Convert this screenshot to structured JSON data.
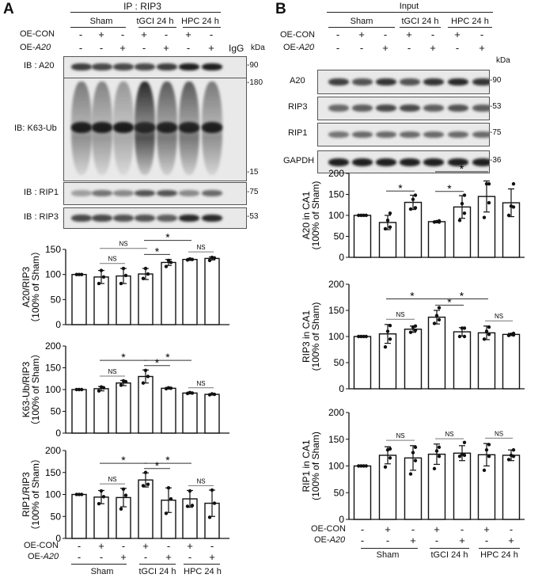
{
  "panelA": {
    "label": "A",
    "ip_header": "IP : RIP3",
    "groups": [
      "Sham",
      "tGCI 24 h",
      "HPC 24 h"
    ],
    "row_oe_con": "OE-CON",
    "row_oe_a20_prefix": "OE-",
    "row_oe_a20_gene": "A20",
    "oe_con": [
      "-",
      "+",
      "-",
      "+",
      "-",
      "+",
      "-"
    ],
    "oe_a20": [
      "-",
      "-",
      "+",
      "-",
      "+",
      "-",
      "+"
    ],
    "igg": "IgG",
    "kda": "kDa",
    "blots": [
      {
        "label": "IB : A20",
        "markers": [
          "90"
        ]
      },
      {
        "label": "IB: K63-Ub",
        "markers": [
          "180",
          "15"
        ]
      },
      {
        "label": "IB : RIP1",
        "markers": [
          "75"
        ]
      },
      {
        "label": "IB : RIP3",
        "markers": [
          "53"
        ]
      }
    ]
  },
  "panelB": {
    "label": "B",
    "header": "Input",
    "groups": [
      "Sham",
      "tGCI 24 h",
      "HPC 24 h"
    ],
    "row_oe_con": "OE-CON",
    "row_oe_a20_prefix": "OE-",
    "row_oe_a20_gene": "A20",
    "oe_con": [
      "-",
      "+",
      "-",
      "+",
      "-",
      "+",
      "-"
    ],
    "oe_a20": [
      "-",
      "-",
      "+",
      "-",
      "+",
      "-",
      "+"
    ],
    "kda": "kDa",
    "blots": [
      {
        "label": "A20",
        "markers": [
          "90"
        ]
      },
      {
        "label": "RIP3",
        "markers": [
          "53"
        ]
      },
      {
        "label": "RIP1",
        "markers": [
          "75"
        ]
      },
      {
        "label": "GAPDH",
        "markers": [
          "36"
        ]
      }
    ]
  },
  "bottom_axes": {
    "oe_con": "OE-CON",
    "oe_a20_prefix": "OE-",
    "oe_a20_gene": "A20",
    "oe_con_signs": [
      "-",
      "+",
      "-",
      "+",
      "-",
      "+",
      "-"
    ],
    "oe_a20_signs": [
      "-",
      "-",
      "+",
      "-",
      "+",
      "-",
      "+"
    ],
    "groups": [
      "Sham",
      "tGCI 24 h",
      "HPC 24 h"
    ]
  },
  "chart_data": [
    {
      "type": "bar",
      "panel": "A",
      "ylabel": [
        "A20/RIP3",
        "（100% of Sham）"
      ],
      "ylim": [
        0,
        150
      ],
      "yticks": [
        0,
        50,
        100,
        150
      ],
      "values": [
        100,
        95,
        97,
        101,
        124,
        130,
        132
      ],
      "errors": [
        0,
        13,
        15,
        11,
        6,
        2,
        3
      ],
      "points": [
        [
          100,
          100,
          100
        ],
        [
          82,
          95,
          108
        ],
        [
          82,
          98,
          112
        ],
        [
          92,
          101,
          112
        ],
        [
          116,
          124,
          128
        ],
        [
          129,
          130,
          131
        ],
        [
          128,
          133,
          134
        ]
      ],
      "comparisons": [
        {
          "a": 1,
          "b": 2,
          "label": "NS"
        },
        {
          "a": 1,
          "b": 3,
          "label": "NS"
        },
        {
          "a": 3,
          "b": 4,
          "label": "*"
        },
        {
          "a": 3,
          "b": 5,
          "label": "*"
        },
        {
          "a": 5,
          "b": 6,
          "label": "NS"
        }
      ]
    },
    {
      "type": "bar",
      "panel": "A",
      "ylabel": [
        "K63-Ub/RIP3",
        "（100% of Sham）"
      ],
      "ylim": [
        0,
        200
      ],
      "yticks": [
        0,
        50,
        100,
        150,
        200
      ],
      "values": [
        100,
        102,
        115,
        130,
        103,
        92,
        89
      ],
      "errors": [
        0,
        5,
        6,
        15,
        2,
        2,
        1
      ],
      "points": [
        [
          100,
          100,
          100
        ],
        [
          97,
          104,
          106
        ],
        [
          110,
          118,
          120
        ],
        [
          115,
          130,
          144
        ],
        [
          102,
          103,
          104
        ],
        [
          91,
          92,
          93
        ],
        [
          88,
          89,
          90
        ]
      ],
      "comparisons": [
        {
          "a": 1,
          "b": 2,
          "label": "NS"
        },
        {
          "a": 1,
          "b": 3,
          "label": "*"
        },
        {
          "a": 3,
          "b": 4,
          "label": "*"
        },
        {
          "a": 3,
          "b": 5,
          "label": "*"
        },
        {
          "a": 5,
          "b": 6,
          "label": "NS"
        }
      ]
    },
    {
      "type": "bar",
      "panel": "A",
      "ylabel": [
        "RIP1/RIP3",
        "（100% of Sham）"
      ],
      "ylim": [
        0,
        200
      ],
      "yticks": [
        0,
        50,
        100,
        150,
        200
      ],
      "values": [
        100,
        94,
        93,
        133,
        87,
        90,
        80
      ],
      "errors": [
        0,
        15,
        21,
        16,
        28,
        19,
        30
      ],
      "points": [
        [
          100,
          100,
          100
        ],
        [
          79,
          95,
          108
        ],
        [
          67,
          98,
          112
        ],
        [
          120,
          123,
          150
        ],
        [
          57,
          90,
          115
        ],
        [
          73,
          75,
          108
        ],
        [
          48,
          80,
          110
        ]
      ],
      "comparisons": [
        {
          "a": 1,
          "b": 2,
          "label": "NS"
        },
        {
          "a": 1,
          "b": 3,
          "label": "*"
        },
        {
          "a": 3,
          "b": 4,
          "label": "*"
        },
        {
          "a": 3,
          "b": 5,
          "label": "*"
        },
        {
          "a": 5,
          "b": 6,
          "label": "NS"
        }
      ]
    },
    {
      "type": "bar",
      "panel": "B",
      "ylabel": [
        "A20  in CA1",
        "(100% of Sham)"
      ],
      "ylim": [
        0,
        200
      ],
      "yticks": [
        0,
        50,
        100,
        150,
        200
      ],
      "values": [
        100,
        83,
        131,
        85,
        120,
        145,
        130
      ],
      "errors": [
        0,
        17,
        17,
        2,
        27,
        37,
        33
      ],
      "points": [
        [
          100,
          100,
          100,
          100
        ],
        [
          68,
          72,
          88,
          105
        ],
        [
          115,
          118,
          138,
          148
        ],
        [
          84,
          84,
          85,
          87
        ],
        [
          88,
          105,
          128,
          148
        ],
        [
          95,
          130,
          175,
          175
        ],
        [
          100,
          120,
          122,
          175
        ]
      ],
      "comparisons": [
        {
          "a": 1,
          "b": 2,
          "label": "*"
        },
        {
          "a": 3,
          "b": 4,
          "label": "*"
        },
        {
          "a": 3,
          "b": 5,
          "label": "*"
        }
      ]
    },
    {
      "type": "bar",
      "panel": "B",
      "ylabel": [
        "RIP3 in CA1",
        "(100% of Sham)"
      ],
      "ylim": [
        0,
        200
      ],
      "yticks": [
        0,
        50,
        100,
        150,
        200
      ],
      "values": [
        100,
        105,
        114,
        137,
        109,
        107,
        104
      ],
      "errors": [
        0,
        18,
        6,
        13,
        8,
        13,
        2
      ],
      "points": [
        [
          100,
          100,
          100,
          100
        ],
        [
          80,
          95,
          110,
          121
        ],
        [
          108,
          112,
          118,
          120
        ],
        [
          125,
          132,
          140,
          155
        ],
        [
          100,
          100,
          116,
          116
        ],
        [
          95,
          104,
          110,
          118
        ],
        [
          102,
          103,
          104,
          106
        ]
      ],
      "comparisons": [
        {
          "a": 1,
          "b": 2,
          "label": "NS"
        },
        {
          "a": 1,
          "b": 3,
          "label": "*"
        },
        {
          "a": 3,
          "b": 4,
          "label": "*"
        },
        {
          "a": 3,
          "b": 5,
          "label": "*"
        },
        {
          "a": 5,
          "b": 6,
          "label": "NS"
        }
      ]
    },
    {
      "type": "bar",
      "panel": "B",
      "ylabel": [
        "RIP1 in CA1",
        "(100% of Sham)"
      ],
      "ylim": [
        0,
        200
      ],
      "yticks": [
        0,
        50,
        100,
        150,
        200
      ],
      "values": [
        100,
        120,
        115,
        122,
        124,
        121,
        120
      ],
      "errors": [
        0,
        16,
        23,
        19,
        14,
        21,
        10
      ],
      "points": [
        [
          100,
          100,
          100,
          100
        ],
        [
          98,
          115,
          130,
          132
        ],
        [
          85,
          110,
          125,
          135
        ],
        [
          95,
          118,
          128,
          135
        ],
        [
          118,
          120,
          122,
          144
        ],
        [
          92,
          118,
          130,
          140
        ],
        [
          112,
          118,
          120,
          130
        ]
      ],
      "comparisons": [
        {
          "a": 1,
          "b": 2,
          "label": "NS"
        },
        {
          "a": 3,
          "b": 4,
          "label": "NS"
        },
        {
          "a": 5,
          "b": 6,
          "label": "NS"
        }
      ]
    }
  ]
}
